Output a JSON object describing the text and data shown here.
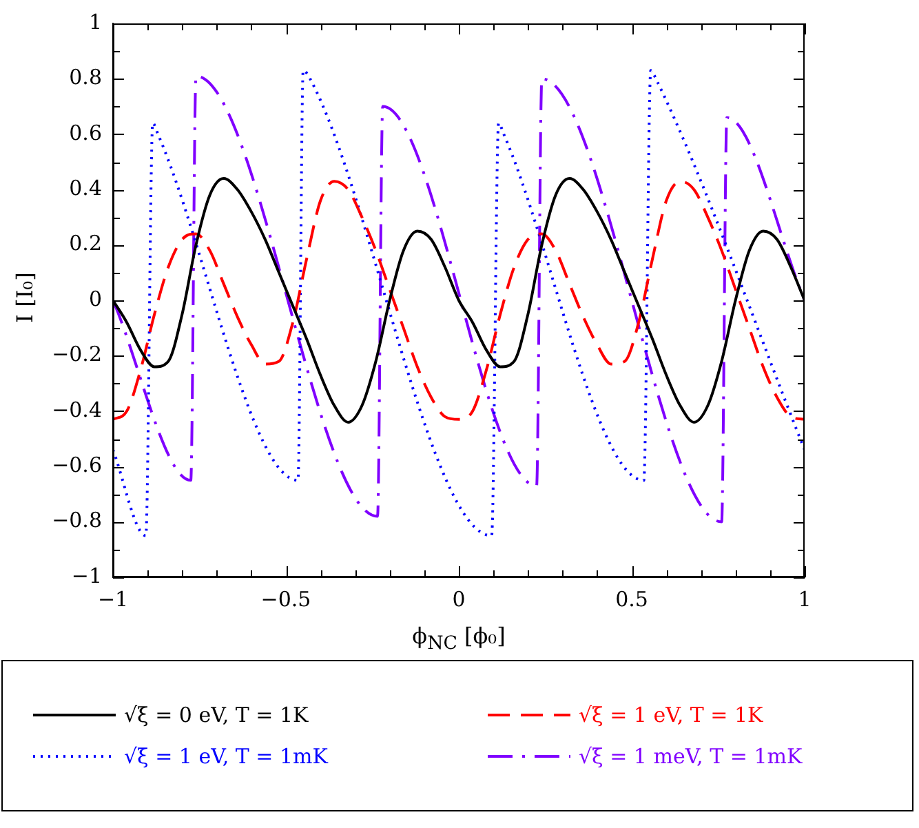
{
  "chart_data": {
    "type": "line",
    "xlabel": "ϕ$_{NC}$ [ϕ₀]",
    "ylabel": "I [I₀]",
    "xlim": [
      -1,
      1
    ],
    "ylim": [
      -1,
      1
    ],
    "xticks": [
      {
        "value": -1,
        "label": "−1"
      },
      {
        "value": -0.9,
        "label": null
      },
      {
        "value": -0.8,
        "label": null
      },
      {
        "value": -0.7,
        "label": null
      },
      {
        "value": -0.6,
        "label": null
      },
      {
        "value": -0.5,
        "label": "−0.5"
      },
      {
        "value": -0.4,
        "label": null
      },
      {
        "value": -0.3,
        "label": null
      },
      {
        "value": -0.2,
        "label": null
      },
      {
        "value": -0.1,
        "label": null
      },
      0,
      {
        "value": 0.1,
        "label": null
      },
      {
        "value": 0.2,
        "label": null
      },
      {
        "value": 0.3,
        "label": null
      },
      {
        "value": 0.4,
        "label": null
      },
      0.5,
      {
        "value": 0.6,
        "label": null
      },
      {
        "value": 0.7,
        "label": null
      },
      {
        "value": 0.8,
        "label": null
      },
      {
        "value": 0.9,
        "label": null
      },
      1
    ],
    "yticks": [
      {
        "value": -1,
        "label": "−1"
      },
      {
        "value": -0.9,
        "label": null
      },
      {
        "value": -0.8,
        "label": "−0.8"
      },
      {
        "value": -0.7,
        "label": null
      },
      {
        "value": -0.6,
        "label": "−0.6"
      },
      {
        "value": -0.5,
        "label": null
      },
      {
        "value": -0.4,
        "label": "−0.4"
      },
      {
        "value": -0.3,
        "label": null
      },
      {
        "value": -0.2,
        "label": "−0.2"
      },
      {
        "value": -0.1,
        "label": null
      },
      0,
      {
        "value": 0.1,
        "label": null
      },
      0.2,
      {
        "value": 0.3,
        "label": null
      },
      0.4,
      {
        "value": 0.5,
        "label": null
      },
      0.6,
      {
        "value": 0.7,
        "label": null
      },
      0.8,
      {
        "value": 0.9,
        "label": null
      },
      1
    ],
    "grid": false,
    "legend": "bottom",
    "marker": "none",
    "series": [
      {
        "name": "√ξ = 0 eV, T = 1K",
        "color": "#000000",
        "line_style": "solid",
        "x": [
          -1,
          -0.96,
          -0.92,
          -0.88,
          -0.84,
          -0.8,
          -0.76,
          -0.72,
          -0.68,
          -0.64,
          -0.6,
          -0.56,
          -0.52,
          -0.48,
          -0.44,
          -0.4,
          -0.36,
          -0.32,
          -0.28,
          -0.24,
          -0.2,
          -0.16,
          -0.12,
          -0.08,
          -0.04,
          0,
          0.04,
          0.08,
          0.12,
          0.16,
          0.2,
          0.24,
          0.28,
          0.32,
          0.36,
          0.4,
          0.44,
          0.48,
          0.52,
          0.56,
          0.6,
          0.64,
          0.68,
          0.72,
          0.76,
          0.8,
          0.84,
          0.88,
          0.92,
          0.96,
          1
        ],
        "values": [
          0,
          -0.08,
          -0.18,
          -0.24,
          -0.22,
          -0.05,
          0.2,
          0.38,
          0.44,
          0.4,
          0.32,
          0.22,
          0.1,
          -0.02,
          -0.14,
          -0.27,
          -0.38,
          -0.44,
          -0.38,
          -0.22,
          0,
          0.18,
          0.25,
          0.22,
          0.12,
          0,
          -0.08,
          -0.18,
          -0.24,
          -0.22,
          -0.05,
          0.2,
          0.38,
          0.44,
          0.4,
          0.32,
          0.22,
          0.1,
          -0.02,
          -0.14,
          -0.27,
          -0.38,
          -0.44,
          -0.38,
          -0.22,
          0,
          0.18,
          0.25,
          0.22,
          0.12,
          0
        ]
      },
      {
        "name": "√ξ = 1 eV, T = 1K",
        "color": "#ff0000",
        "line_style": "dashed",
        "x": [
          -1,
          -0.96,
          -0.92,
          -0.88,
          -0.84,
          -0.8,
          -0.76,
          -0.72,
          -0.68,
          -0.64,
          -0.6,
          -0.56,
          -0.52,
          -0.48,
          -0.44,
          -0.4,
          -0.36,
          -0.32,
          -0.28,
          -0.24,
          -0.2,
          -0.16,
          -0.12,
          -0.08,
          -0.04,
          0,
          0.04,
          0.08,
          0.12,
          0.16,
          0.2,
          0.24,
          0.28,
          0.32,
          0.36,
          0.4,
          0.44,
          0.48,
          0.52,
          0.56,
          0.6,
          0.64,
          0.68,
          0.72,
          0.76,
          0.8,
          0.84,
          0.88,
          0.92,
          0.96,
          1
        ],
        "values": [
          -0.43,
          -0.4,
          -0.25,
          -0.05,
          0.12,
          0.22,
          0.24,
          0.18,
          0.06,
          -0.06,
          -0.16,
          -0.23,
          -0.22,
          -0.08,
          0.15,
          0.36,
          0.43,
          0.4,
          0.3,
          0.18,
          0.04,
          -0.1,
          -0.24,
          -0.35,
          -0.42,
          -0.43,
          -0.4,
          -0.25,
          -0.05,
          0.12,
          0.22,
          0.24,
          0.18,
          0.06,
          -0.06,
          -0.16,
          -0.23,
          -0.22,
          -0.08,
          0.15,
          0.36,
          0.43,
          0.4,
          0.3,
          0.18,
          0.04,
          -0.1,
          -0.24,
          -0.35,
          -0.42,
          -0.43
        ]
      },
      {
        "name": "√ξ = 1 eV, T = 1mK",
        "color": "#0000ff",
        "line_style": "dotted",
        "x": [
          -1,
          -0.905,
          -0.885,
          -0.87,
          -0.465,
          -0.45,
          -0.43,
          0.095,
          0.115,
          0.13,
          0.535,
          0.555,
          0.57,
          1
        ],
        "values": [
          -0.54,
          -0.85,
          0.64,
          0.6,
          -0.65,
          0.83,
          0.8,
          -0.85,
          0.64,
          0.6,
          -0.65,
          0.83,
          0.8,
          -0.54
        ]
      },
      {
        "name": "√ξ = 1 meV, T = 1mK",
        "color": "#8000ff",
        "line_style": "dashdot",
        "x": [
          -1,
          -0.775,
          -0.76,
          -0.235,
          -0.22,
          0.225,
          0.24,
          0.76,
          0.775,
          1
        ],
        "values": [
          0,
          -0.65,
          0.81,
          -0.78,
          0.7,
          -0.67,
          0.8,
          -0.8,
          0.66,
          0
        ]
      }
    ]
  }
}
